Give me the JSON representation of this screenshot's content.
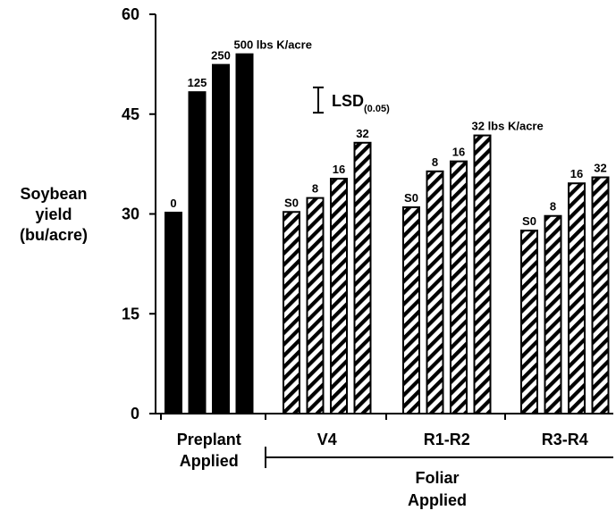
{
  "chart_data": {
    "type": "bar",
    "ylabel": [
      "Soybean",
      "yield",
      "(bu/acre)"
    ],
    "ylim": [
      0,
      60
    ],
    "yticks": [
      "0",
      "15",
      "30",
      "45",
      "60"
    ],
    "groups": [
      {
        "name": [
          "Preplant",
          "Applied"
        ],
        "style": "solid",
        "bars": [
          {
            "label": "0",
            "value": 30.2
          },
          {
            "label": "125",
            "value": 48.3
          },
          {
            "label": "250",
            "value": 52.4
          },
          {
            "label": "500 lbs K/acre",
            "value": 54.0
          }
        ]
      },
      {
        "name": [
          "V4"
        ],
        "style": "hatched",
        "bars": [
          {
            "label": "S0",
            "value": 30.3
          },
          {
            "label": "8",
            "value": 32.4
          },
          {
            "label": "16",
            "value": 35.3
          },
          {
            "label": "32",
            "value": 40.7
          }
        ]
      },
      {
        "name": [
          "R1-R2"
        ],
        "style": "hatched",
        "bars": [
          {
            "label": "S0",
            "value": 31.0
          },
          {
            "label": "8",
            "value": 36.4
          },
          {
            "label": "16",
            "value": 37.9
          },
          {
            "label": "32 lbs K/acre",
            "value": 41.8
          }
        ]
      },
      {
        "name": [
          "R3-R4"
        ],
        "style": "hatched",
        "bars": [
          {
            "label": "S0",
            "value": 27.5
          },
          {
            "label": "8",
            "value": 29.7
          },
          {
            "label": "16",
            "value": 34.6
          },
          {
            "label": "32",
            "value": 35.5
          }
        ]
      }
    ],
    "bracket_label": [
      "Foliar",
      "Applied"
    ],
    "lsd": {
      "label": "LSD",
      "subscript": "(0.05)",
      "value": 3.8
    },
    "colors": {
      "solid": "#000000",
      "hatch": "#000000",
      "background": "#ffffff"
    }
  }
}
